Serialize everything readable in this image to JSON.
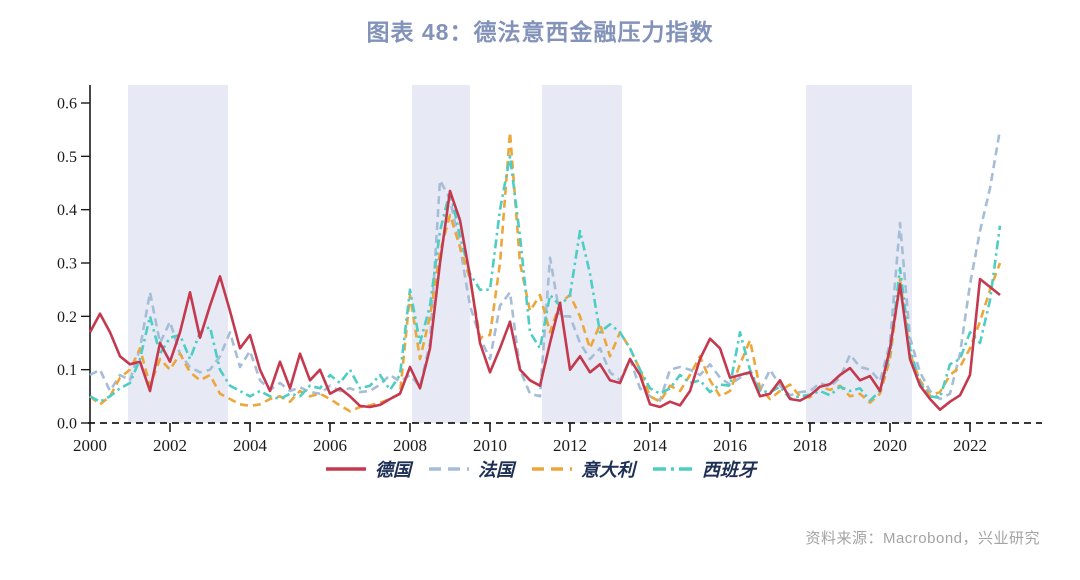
{
  "title": "图表 48：德法意西金融压力指数",
  "source": "资料来源：Macrobond，兴业研究",
  "colors": {
    "title_text": "#8292b9",
    "band_fill": "#e7eaf5",
    "axis": "#1a1a1a",
    "legend_text": "#1e2f55",
    "source_text": "#a3a3a3"
  },
  "chart_data": {
    "type": "line",
    "title": "图表 48：德法意西金融压力指数",
    "xlabel": "",
    "ylabel": "",
    "x_start": 2000.0,
    "x_step": 0.25,
    "xlim": [
      1999.9,
      2023.75
    ],
    "ylim": [
      0.0,
      0.6
    ],
    "x_ticks": [
      2000,
      2002,
      2004,
      2006,
      2008,
      2010,
      2012,
      2014,
      2016,
      2018,
      2020,
      2022
    ],
    "y_ticks": [
      "0.0",
      "0.1",
      "0.2",
      "0.3",
      "0.4",
      "0.5",
      "0.6"
    ],
    "grid": false,
    "legend_position": "bottom",
    "shaded_bands": [
      [
        2000.95,
        2003.45
      ],
      [
        2008.05,
        2009.5
      ],
      [
        2011.3,
        2013.3
      ],
      [
        2017.9,
        2020.55
      ]
    ],
    "series": [
      {
        "key": "germany",
        "name": "德国",
        "color": "#c5394f",
        "dash": "solid",
        "values": [
          0.17,
          0.205,
          0.17,
          0.125,
          0.11,
          0.115,
          0.06,
          0.15,
          0.115,
          0.17,
          0.245,
          0.16,
          0.22,
          0.275,
          0.21,
          0.14,
          0.165,
          0.1,
          0.06,
          0.115,
          0.065,
          0.13,
          0.08,
          0.1,
          0.055,
          0.065,
          0.05,
          0.032,
          0.03,
          0.034,
          0.045,
          0.055,
          0.105,
          0.065,
          0.14,
          0.3,
          0.435,
          0.38,
          0.275,
          0.15,
          0.095,
          0.14,
          0.19,
          0.1,
          0.08,
          0.07,
          0.15,
          0.225,
          0.1,
          0.125,
          0.095,
          0.11,
          0.08,
          0.075,
          0.12,
          0.09,
          0.035,
          0.03,
          0.04,
          0.033,
          0.06,
          0.12,
          0.158,
          0.14,
          0.085,
          0.09,
          0.095,
          0.05,
          0.055,
          0.08,
          0.045,
          0.042,
          0.052,
          0.068,
          0.073,
          0.09,
          0.103,
          0.08,
          0.088,
          0.06,
          0.14,
          0.26,
          0.12,
          0.07,
          0.045,
          0.025,
          0.04,
          0.052,
          0.09,
          0.27,
          0.255,
          0.24
        ]
      },
      {
        "key": "france",
        "name": "法国",
        "color": "#a6bdd8",
        "dash": "dashed",
        "values": [
          0.09,
          0.1,
          0.06,
          0.09,
          0.08,
          0.14,
          0.245,
          0.15,
          0.19,
          0.13,
          0.105,
          0.095,
          0.1,
          0.125,
          0.17,
          0.105,
          0.135,
          0.08,
          0.062,
          0.075,
          0.06,
          0.067,
          0.058,
          0.055,
          0.07,
          0.06,
          0.065,
          0.058,
          0.06,
          0.072,
          0.09,
          0.078,
          0.09,
          0.068,
          0.15,
          0.455,
          0.42,
          0.33,
          0.22,
          0.16,
          0.12,
          0.22,
          0.245,
          0.1,
          0.055,
          0.05,
          0.31,
          0.2,
          0.2,
          0.15,
          0.12,
          0.14,
          0.095,
          0.08,
          0.12,
          0.065,
          0.05,
          0.042,
          0.1,
          0.105,
          0.1,
          0.09,
          0.11,
          0.085,
          0.072,
          0.085,
          0.095,
          0.06,
          0.1,
          0.07,
          0.052,
          0.058,
          0.06,
          0.075,
          0.068,
          0.085,
          0.128,
          0.105,
          0.1,
          0.078,
          0.15,
          0.375,
          0.16,
          0.095,
          0.06,
          0.045,
          0.055,
          0.13,
          0.26,
          0.36,
          0.44,
          0.55
        ]
      },
      {
        "key": "italy",
        "name": "意大利",
        "color": "#eda63a",
        "dash": "dashed",
        "values": [
          0.05,
          0.035,
          0.05,
          0.085,
          0.1,
          0.14,
          0.07,
          0.12,
          0.1,
          0.13,
          0.095,
          0.08,
          0.09,
          0.055,
          0.045,
          0.035,
          0.032,
          0.035,
          0.045,
          0.05,
          0.04,
          0.06,
          0.05,
          0.055,
          0.045,
          0.033,
          0.022,
          0.03,
          0.033,
          0.038,
          0.045,
          0.055,
          0.24,
          0.12,
          0.2,
          0.32,
          0.39,
          0.33,
          0.27,
          0.16,
          0.165,
          0.3,
          0.545,
          0.3,
          0.21,
          0.24,
          0.17,
          0.225,
          0.24,
          0.2,
          0.14,
          0.185,
          0.125,
          0.17,
          0.14,
          0.1,
          0.05,
          0.04,
          0.07,
          0.06,
          0.09,
          0.125,
          0.08,
          0.05,
          0.06,
          0.11,
          0.155,
          0.065,
          0.045,
          0.06,
          0.072,
          0.05,
          0.048,
          0.068,
          0.062,
          0.07,
          0.05,
          0.055,
          0.038,
          0.055,
          0.12,
          0.27,
          0.13,
          0.08,
          0.052,
          0.058,
          0.09,
          0.105,
          0.14,
          0.19,
          0.25,
          0.3
        ]
      },
      {
        "key": "spain",
        "name": "西班牙",
        "color": "#4ecdc4",
        "dash": "dashdot",
        "values": [
          0.05,
          0.04,
          0.05,
          0.065,
          0.075,
          0.12,
          0.2,
          0.13,
          0.16,
          0.165,
          0.12,
          0.17,
          0.18,
          0.1,
          0.07,
          0.06,
          0.05,
          0.06,
          0.05,
          0.045,
          0.055,
          0.05,
          0.07,
          0.065,
          0.09,
          0.075,
          0.1,
          0.065,
          0.07,
          0.09,
          0.062,
          0.09,
          0.25,
          0.15,
          0.22,
          0.36,
          0.435,
          0.35,
          0.28,
          0.25,
          0.25,
          0.4,
          0.5,
          0.35,
          0.17,
          0.14,
          0.24,
          0.22,
          0.24,
          0.36,
          0.28,
          0.17,
          0.185,
          0.17,
          0.14,
          0.1,
          0.065,
          0.055,
          0.065,
          0.09,
          0.075,
          0.08,
          0.058,
          0.072,
          0.07,
          0.17,
          0.1,
          0.06,
          0.058,
          0.068,
          0.046,
          0.05,
          0.053,
          0.06,
          0.052,
          0.068,
          0.06,
          0.065,
          0.042,
          0.06,
          0.13,
          0.29,
          0.14,
          0.075,
          0.05,
          0.047,
          0.11,
          0.12,
          0.17,
          0.15,
          0.23,
          0.37
        ]
      }
    ]
  }
}
